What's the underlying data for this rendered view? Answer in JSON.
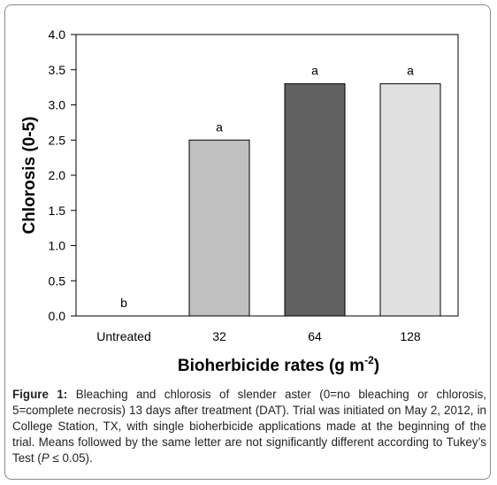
{
  "chart_data": {
    "type": "bar",
    "categories": [
      "Untreated",
      "32",
      "64",
      "128"
    ],
    "values": [
      0,
      2.5,
      3.3,
      3.3
    ],
    "significance_letters": [
      "b",
      "a",
      "a",
      "a"
    ],
    "bar_colors": [
      "#c0c0c0",
      "#c0c0c0",
      "#606060",
      "#e0e0e0"
    ],
    "ylabel": "Chlorosis (0-5)",
    "xlabel": "Bioherbicide rates (g m",
    "xlabel_superscript": "-2",
    "xlabel_suffix": ")",
    "ylim": [
      0,
      4.0
    ],
    "yticks": [
      "0.0",
      "0.5",
      "1.0",
      "1.5",
      "2.0",
      "2.5",
      "3.0",
      "3.5",
      "4.0"
    ],
    "grid": false,
    "legend": "none"
  },
  "caption": {
    "label": "Figure 1:",
    "text_1": " Bleaching and chlorosis of slender aster (0=no bleaching or chlorosis, 5=complete necrosis) 13 days after treatment (DAT). Trial was initiated on May 2, 2012, in College Station, TX, with single bioherbicide applications made at the beginning of the trial. Means followed by the same letter are not significantly different according to Tukey’s Test (",
    "p_symbol": "P",
    "text_2": " ≤ 0.05)."
  }
}
